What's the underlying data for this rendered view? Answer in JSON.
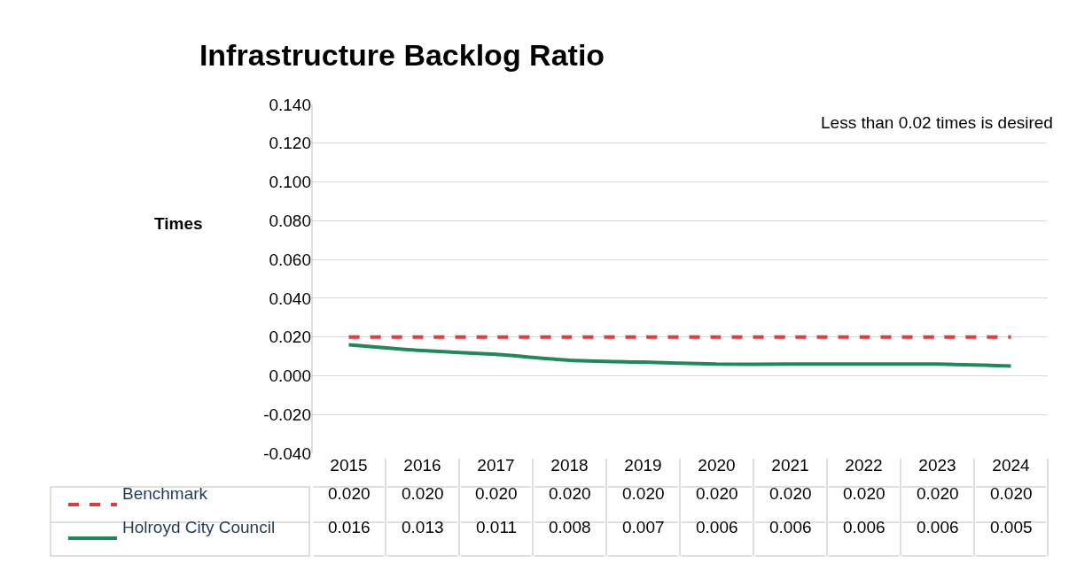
{
  "chart_data": {
    "type": "line",
    "title": "Infrastructure Backlog Ratio",
    "ylabel": "Times",
    "categories": [
      "2015",
      "2016",
      "2017",
      "2018",
      "2019",
      "2020",
      "2021",
      "2022",
      "2023",
      "2024"
    ],
    "series": [
      {
        "name": "Benchmark",
        "color": "#e03c3c",
        "line_style": "dashed",
        "values": [
          0.02,
          0.02,
          0.02,
          0.02,
          0.02,
          0.02,
          0.02,
          0.02,
          0.02,
          0.02
        ],
        "value_labels": [
          "0.020",
          "0.020",
          "0.020",
          "0.020",
          "0.020",
          "0.020",
          "0.020",
          "0.020",
          "0.020",
          "0.020"
        ]
      },
      {
        "name": "Holroyd City Council",
        "color": "#1e8a5a",
        "line_style": "solid",
        "values": [
          0.016,
          0.013,
          0.011,
          0.008,
          0.007,
          0.006,
          0.006,
          0.006,
          0.006,
          0.005
        ],
        "value_labels": [
          "0.016",
          "0.013",
          "0.011",
          "0.008",
          "0.007",
          "0.006",
          "0.006",
          "0.006",
          "0.006",
          "0.005"
        ]
      }
    ],
    "ylim": [
      -0.04,
      0.14
    ],
    "yticks": [
      {
        "value": -0.04,
        "label": "-0.040"
      },
      {
        "value": -0.02,
        "label": "-0.020"
      },
      {
        "value": 0,
        "label": "0.000"
      },
      {
        "value": 0.02,
        "label": "0.020"
      },
      {
        "value": 0.04,
        "label": "0.040"
      },
      {
        "value": 0.06,
        "label": "0.060"
      },
      {
        "value": 0.08,
        "label": "0.080"
      },
      {
        "value": 0.1,
        "label": "0.100"
      },
      {
        "value": 0.12,
        "label": "0.120"
      },
      {
        "value": 0.14,
        "label": "0.140"
      }
    ],
    "annotations": [
      "Less than 0.02 times is desired"
    ],
    "grid": "y",
    "legend": "bottom",
    "marker": "none"
  }
}
